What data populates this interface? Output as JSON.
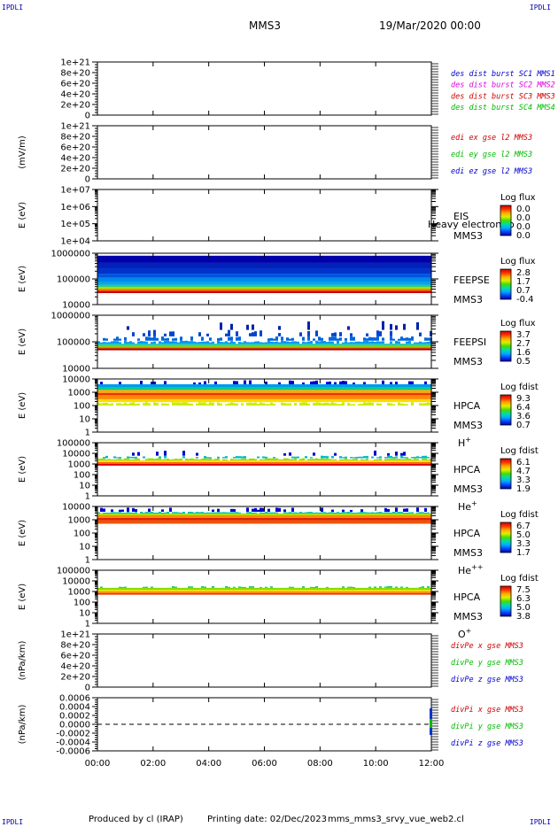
{
  "header": {
    "spacecraft": "MMS3",
    "datetime": "19/Mar/2020 00:00",
    "corner_tl": "IPDLI",
    "corner_tr": "IPDLI",
    "corner_bl": "IPDLI",
    "corner_br": "IPDLI"
  },
  "footer": {
    "produced_by": "Produced by cl (IRAP)",
    "printing_date": "Printing date: 02/Dec/2023",
    "script": "mms_mms3_srvy_vue_web2.cl"
  },
  "chart_data": [
    {
      "type": "line",
      "id": "des-dist",
      "ylabel": "",
      "ylim": [
        0,
        1e+21
      ],
      "yticks": [
        "0",
        "2e+20",
        "4e+20",
        "6e+20",
        "8e+20",
        "1e+21"
      ],
      "zero_line": true,
      "legend": [
        {
          "text": "des dist burst SC1 MMS1",
          "color": "#0000cc"
        },
        {
          "text": "des dist burst SC2 MMS2",
          "color": "#dd00dd"
        },
        {
          "text": "des dist burst SC3 MMS3",
          "color": "#cc0000"
        },
        {
          "text": "des dist burst SC4 MMS4",
          "color": "#00bb00"
        }
      ]
    },
    {
      "type": "line",
      "id": "edi-e",
      "ylabel": "(mV/m)",
      "ylim": [
        0,
        1e+21
      ],
      "yticks": [
        "0",
        "2e+20",
        "4e+20",
        "6e+20",
        "8e+20",
        "1e+21"
      ],
      "zero_line": true,
      "legend": [
        {
          "text": "edi ex gse l2 MMS3",
          "color": "#cc0000"
        },
        {
          "text": "edi ey gse l2 MMS3",
          "color": "#00bb00"
        },
        {
          "text": "edi ez gse l2 MMS3",
          "color": "#0000cc"
        }
      ]
    },
    {
      "type": "heatmap",
      "id": "eis",
      "ylabel": "E (eV)",
      "yscale": "log",
      "ylim": [
        10000,
        10000000
      ],
      "yticks": [
        "1e+04",
        "1e+05",
        "1e+06",
        "1e+07"
      ],
      "instrument": "EIS",
      "spacecraft": "MMS3",
      "overlay_text": "Heavy electron to",
      "cbar_title": "Log flux",
      "cbar_ticks": [
        "0.0",
        "0.0",
        "0.0",
        "0.0"
      ],
      "bands": []
    },
    {
      "type": "heatmap",
      "id": "feepse",
      "ylabel": "E (eV)",
      "yscale": "log",
      "ylim": [
        10000,
        1000000
      ],
      "yticks": [
        "10000",
        "100000",
        "1000000"
      ],
      "instrument": "FEEPSE",
      "spacecraft": "MMS3",
      "cbar_title": "Log flux",
      "cbar_ticks": [
        "2.8",
        "1.7",
        "0.7",
        "-0.4"
      ],
      "bands": [
        {
          "e0": 28000,
          "e1": 34000,
          "color": "#cc0000",
          "density": 1.0
        },
        {
          "e0": 34000,
          "e1": 40000,
          "color": "#ff6600",
          "density": 1.0
        },
        {
          "e0": 40000,
          "e1": 48000,
          "color": "#aadd00",
          "density": 1.0
        },
        {
          "e0": 48000,
          "e1": 58000,
          "color": "#33cc77",
          "density": 1.0
        },
        {
          "e0": 58000,
          "e1": 75000,
          "color": "#00aadd",
          "density": 1.0
        },
        {
          "e0": 75000,
          "e1": 110000,
          "color": "#0088ee",
          "density": 1.0
        },
        {
          "e0": 110000,
          "e1": 160000,
          "color": "#0055dd",
          "density": 1.0
        },
        {
          "e0": 160000,
          "e1": 250000,
          "color": "#0033cc",
          "density": 1.0
        },
        {
          "e0": 250000,
          "e1": 420000,
          "color": "#0022bb",
          "density": 1.0
        },
        {
          "e0": 420000,
          "e1": 800000,
          "color": "#0000aa",
          "density": 1.0
        }
      ]
    },
    {
      "type": "heatmap",
      "id": "feepsi",
      "ylabel": "E (eV)",
      "yscale": "log",
      "ylim": [
        10000,
        1000000
      ],
      "yticks": [
        "10000",
        "100000",
        "1000000"
      ],
      "instrument": "FEEPSI",
      "spacecraft": "MMS3",
      "cbar_title": "Log flux",
      "cbar_ticks": [
        "3.7",
        "2.7",
        "1.6",
        "0.5"
      ],
      "bands": [
        {
          "e0": 48000,
          "e1": 56000,
          "color": "#aa0000",
          "density": 1.0
        },
        {
          "e0": 56000,
          "e1": 62000,
          "color": "#ee5500",
          "density": 1.0
        },
        {
          "e0": 62000,
          "e1": 70000,
          "color": "#99cc00",
          "density": 1.0
        },
        {
          "e0": 70000,
          "e1": 85000,
          "color": "#22ccaa",
          "density": 1.0
        },
        {
          "e0": 85000,
          "e1": 110000,
          "color": "#0099ee",
          "density": 0.85
        },
        {
          "e0": 110000,
          "e1": 160000,
          "color": "#0066dd",
          "density": 0.55
        },
        {
          "e0": 160000,
          "e1": 280000,
          "color": "#0044cc",
          "density": 0.25
        },
        {
          "e0": 280000,
          "e1": 600000,
          "color": "#0022aa",
          "density": 0.12
        }
      ]
    },
    {
      "type": "heatmap",
      "id": "hpca-h",
      "ylabel": "E (eV)",
      "yscale": "log",
      "ylim": [
        1,
        10000
      ],
      "yticks": [
        "1",
        "10",
        "100",
        "1000",
        "10000"
      ],
      "instrument": "HPCA",
      "spacecraft": "MMS3",
      "species": "H",
      "species_sup": "+",
      "cbar_title": "Log fdist",
      "cbar_ticks": [
        "9.3",
        "6.4",
        "3.6",
        "0.7"
      ],
      "bands": [
        {
          "e0": 100,
          "e1": 180,
          "color": "#ccee00",
          "density": 0.8
        },
        {
          "e0": 180,
          "e1": 300,
          "color": "#ffdd00",
          "density": 1.0
        },
        {
          "e0": 300,
          "e1": 600,
          "color": "#ff8800",
          "density": 1.0
        },
        {
          "e0": 600,
          "e1": 900,
          "color": "#ee3300",
          "density": 1.0
        },
        {
          "e0": 900,
          "e1": 1500,
          "color": "#ffaa00",
          "density": 1.0
        },
        {
          "e0": 1500,
          "e1": 2500,
          "color": "#00cc88",
          "density": 1.0
        },
        {
          "e0": 2500,
          "e1": 4000,
          "color": "#0099ee",
          "density": 1.0
        },
        {
          "e0": 4000,
          "e1": 8000,
          "color": "#0000cc",
          "density": 0.35
        }
      ]
    },
    {
      "type": "heatmap",
      "id": "hpca-he",
      "ylabel": "E (eV)",
      "yscale": "log",
      "ylim": [
        1,
        100000
      ],
      "yticks": [
        "1",
        "10",
        "100",
        "1000",
        "10000",
        "100000"
      ],
      "instrument": "HPCA",
      "spacecraft": "MMS3",
      "species": "He",
      "species_sup": "+",
      "cbar_title": "Log fdist",
      "cbar_ticks": [
        "6.1",
        "4.7",
        "3.3",
        "1.9"
      ],
      "bands": [
        {
          "e0": 700,
          "e1": 1000,
          "color": "#dd0000",
          "density": 1.0
        },
        {
          "e0": 1000,
          "e1": 1500,
          "color": "#ff6600",
          "density": 1.0
        },
        {
          "e0": 1500,
          "e1": 2200,
          "color": "#ffdd00",
          "density": 1.0
        },
        {
          "e0": 2200,
          "e1": 3500,
          "color": "#88dd22",
          "density": 0.9
        },
        {
          "e0": 3500,
          "e1": 6000,
          "color": "#00bbcc",
          "density": 0.5
        },
        {
          "e0": 6000,
          "e1": 20000,
          "color": "#0000cc",
          "density": 0.1
        }
      ]
    },
    {
      "type": "heatmap",
      "id": "hpca-hepp",
      "ylabel": "E (eV)",
      "yscale": "log",
      "ylim": [
        1,
        10000
      ],
      "yticks": [
        "1",
        "10",
        "100",
        "1000",
        "10000"
      ],
      "instrument": "HPCA",
      "spacecraft": "MMS3",
      "species": "He",
      "species_sup": "++",
      "cbar_title": "Log fdist",
      "cbar_ticks": [
        "6.7",
        "5.0",
        "3.3",
        "1.7"
      ],
      "bands": [
        {
          "e0": 500,
          "e1": 900,
          "color": "#ee5500",
          "density": 1.0
        },
        {
          "e0": 900,
          "e1": 1400,
          "color": "#dd2200",
          "density": 1.0
        },
        {
          "e0": 1400,
          "e1": 2200,
          "color": "#ff8800",
          "density": 1.0
        },
        {
          "e0": 2200,
          "e1": 3000,
          "color": "#aadd00",
          "density": 1.0
        },
        {
          "e0": 3000,
          "e1": 4000,
          "color": "#00bbaa",
          "density": 0.9
        },
        {
          "e0": 4000,
          "e1": 8500,
          "color": "#0000cc",
          "density": 0.3
        }
      ]
    },
    {
      "type": "heatmap",
      "id": "hpca-o",
      "ylabel": "E (eV)",
      "yscale": "log",
      "ylim": [
        1,
        100000
      ],
      "yticks": [
        "1",
        "10",
        "100",
        "1000",
        "10000",
        "100000"
      ],
      "instrument": "HPCA",
      "spacecraft": "MMS3",
      "species": "O",
      "species_sup": "+",
      "cbar_title": "Log fdist",
      "cbar_ticks": [
        "7.5",
        "6.3",
        "5.0",
        "3.8"
      ],
      "bands": [
        {
          "e0": 500,
          "e1": 700,
          "color": "#ee3300",
          "density": 1.0
        },
        {
          "e0": 700,
          "e1": 1000,
          "color": "#ff8800",
          "density": 1.0
        },
        {
          "e0": 1000,
          "e1": 1400,
          "color": "#ffdd00",
          "density": 1.0
        },
        {
          "e0": 1400,
          "e1": 2200,
          "color": "#88dd00",
          "density": 1.0
        },
        {
          "e0": 2200,
          "e1": 3200,
          "color": "#22cc66",
          "density": 0.4
        }
      ]
    },
    {
      "type": "line",
      "id": "divpe",
      "ylabel": "(nPa/km)",
      "ylim": [
        0,
        1e+21
      ],
      "yticks": [
        "0",
        "2e+20",
        "4e+20",
        "6e+20",
        "8e+20",
        "1e+21"
      ],
      "zero_line": true,
      "legend": [
        {
          "text": "divPe x gse MMS3",
          "color": "#cc0000"
        },
        {
          "text": "divPe y gse MMS3",
          "color": "#00bb00"
        },
        {
          "text": "divPe z gse MMS3",
          "color": "#0000cc"
        }
      ]
    },
    {
      "type": "line",
      "id": "divpi",
      "ylabel": "(nPa/km)",
      "ylim": [
        -0.0006,
        0.0006
      ],
      "yticks": [
        "-0.0006",
        "-0.0004",
        "-0.0002",
        "0.0000",
        "0.0002",
        "0.0004",
        "0.0006"
      ],
      "zero_line": true,
      "legend": [
        {
          "text": "divPi x gse MMS3",
          "color": "#cc0000"
        },
        {
          "text": "divPi y gse MMS3",
          "color": "#00bb00"
        },
        {
          "text": "divPi z gse MMS3",
          "color": "#0000cc"
        }
      ]
    }
  ],
  "time_axis": {
    "ticks": [
      "00:00",
      "02:00",
      "04:00",
      "06:00",
      "08:00",
      "10:00",
      "12:00"
    ]
  },
  "colors": {
    "colorbar": [
      "#0000aa",
      "#0044ff",
      "#00aaff",
      "#00ddaa",
      "#44dd00",
      "#ddee00",
      "#ffaa00",
      "#ff3300",
      "#cc0000"
    ]
  }
}
